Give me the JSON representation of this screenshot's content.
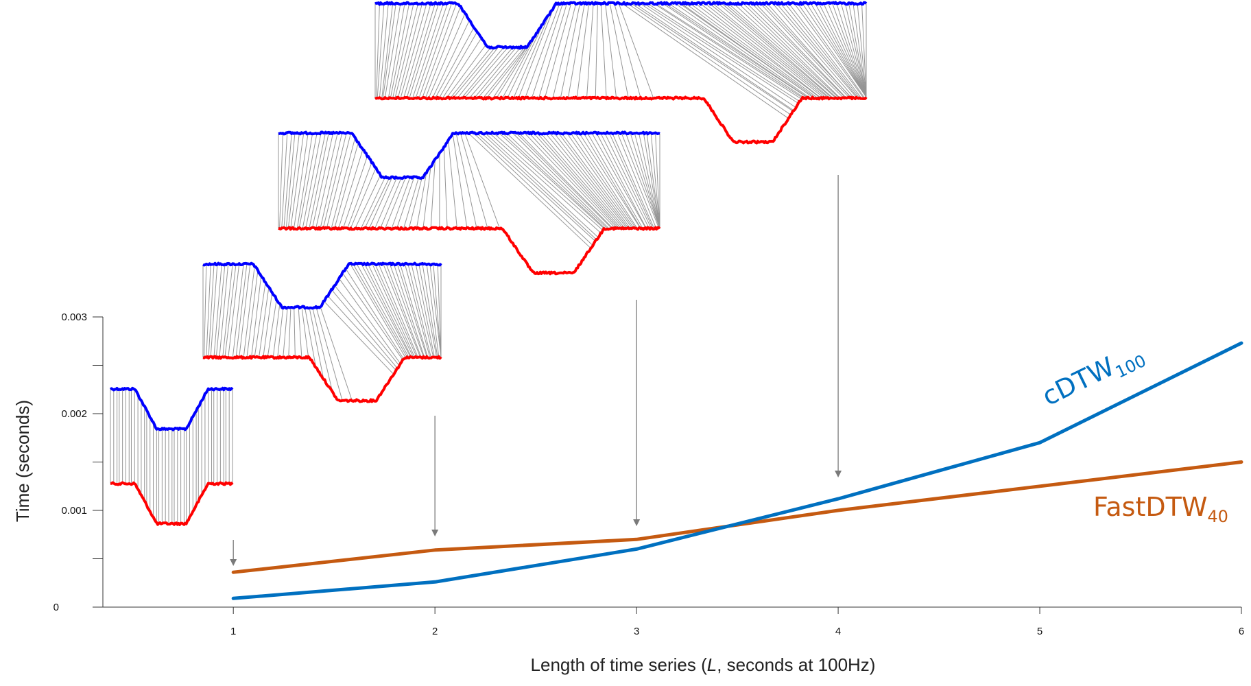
{
  "chart_data": {
    "type": "line",
    "title": "",
    "xlabel_parts": [
      "Length of time series (",
      "L",
      ", seconds at 100Hz)"
    ],
    "ylabel": "Time (seconds)",
    "xlim": [
      0.7,
      6
    ],
    "ylim": [
      0,
      0.003
    ],
    "x_ticks": [
      1,
      2,
      3,
      4,
      5,
      6
    ],
    "y_ticks": [
      0,
      0.0005,
      0.001,
      0.0015,
      0.002,
      0.0025,
      0.003
    ],
    "y_tick_labels": [
      {
        "value": 0,
        "label": "0"
      },
      {
        "value": 0.001,
        "label": "0.001"
      },
      {
        "value": 0.002,
        "label": "0.002"
      },
      {
        "value": 0.003,
        "label": "0.003"
      }
    ],
    "grid": false,
    "x": [
      1,
      2,
      3,
      4,
      5,
      6
    ],
    "series": [
      {
        "name": "FastDTW",
        "name_subscript": "40",
        "color": "#c55a11",
        "values": [
          0.00036,
          0.00059,
          0.0007,
          0.001,
          0.00125,
          0.0015
        ]
      },
      {
        "name": "cDTW",
        "name_subscript": "100",
        "color": "#0070c0",
        "values": [
          9e-05,
          0.00026,
          0.0006,
          0.00112,
          0.0017,
          0.00273
        ]
      }
    ],
    "insets": [
      {
        "x": 1,
        "seconds": 1,
        "query_color": "#0000ff",
        "candidate_color": "#ff0000",
        "link_color": "#8a8a8a"
      },
      {
        "x": 2,
        "seconds": 2,
        "query_color": "#0000ff",
        "candidate_color": "#ff0000",
        "link_color": "#8a8a8a"
      },
      {
        "x": 3,
        "seconds": 3,
        "query_color": "#0000ff",
        "candidate_color": "#ff0000",
        "link_color": "#8a8a8a"
      },
      {
        "x": 4,
        "seconds": 4,
        "query_color": "#0000ff",
        "candidate_color": "#ff0000",
        "link_color": "#8a8a8a"
      }
    ]
  }
}
